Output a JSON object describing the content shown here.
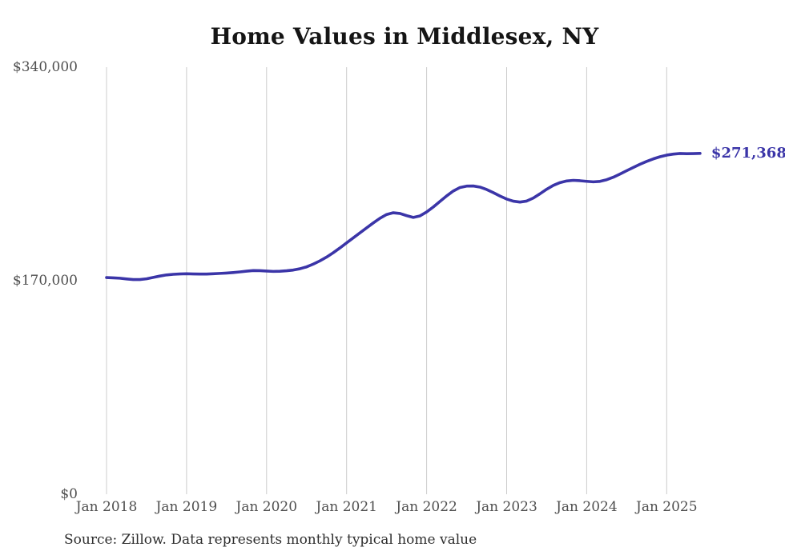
{
  "title": "Home Values in Middlesex, NY",
  "source_note": "Source: Zillow. Data represents monthly typical home value",
  "end_label": "$271,368",
  "colors": {
    "line": "#3b35a8",
    "grid": "#cccccc",
    "axis_text": "#4f4f4f",
    "title_text": "#151515",
    "source_text": "#2e2e2e",
    "background": "#ffffff"
  },
  "chart_data": {
    "type": "line",
    "title": "Home Values in Middlesex, NY",
    "xlabel": "",
    "ylabel": "",
    "ylim": [
      0,
      340000
    ],
    "y_ticks": [
      0,
      170000,
      340000
    ],
    "y_tick_labels": [
      "$0",
      "$170,000",
      "$340,000"
    ],
    "x_tick_labels": [
      "Jan 2018",
      "Jan 2019",
      "Jan 2020",
      "Jan 2021",
      "Jan 2022",
      "Jan 2023",
      "Jan 2024",
      "Jan 2025"
    ],
    "x_start_month": "2018-01",
    "x_end_month": "2025-06",
    "grid": "vertical-only",
    "legend_position": "none",
    "last_value": 271368,
    "series": [
      {
        "name": "Monthly typical home value",
        "values": [
          172500,
          172300,
          172000,
          171400,
          170900,
          170900,
          171500,
          172600,
          173700,
          174600,
          175100,
          175400,
          175500,
          175400,
          175300,
          175300,
          175500,
          175800,
          176100,
          176500,
          177000,
          177600,
          178100,
          178000,
          177700,
          177400,
          177500,
          177900,
          178500,
          179500,
          181000,
          183200,
          185800,
          188800,
          192300,
          196100,
          200100,
          204100,
          208100,
          212100,
          216000,
          219700,
          222700,
          224100,
          223500,
          221800,
          220400,
          221600,
          224700,
          228700,
          233100,
          237500,
          241400,
          244200,
          245300,
          245400,
          244500,
          242600,
          240100,
          237400,
          235000,
          233300,
          232600,
          233400,
          235800,
          239200,
          242800,
          245900,
          248100,
          249400,
          249900,
          249600,
          249100,
          248700,
          249100,
          250400,
          252400,
          254900,
          257600,
          260200,
          262700,
          265000,
          267000,
          268700,
          270000,
          270800,
          271300,
          271100,
          271200,
          271368
        ]
      }
    ]
  }
}
